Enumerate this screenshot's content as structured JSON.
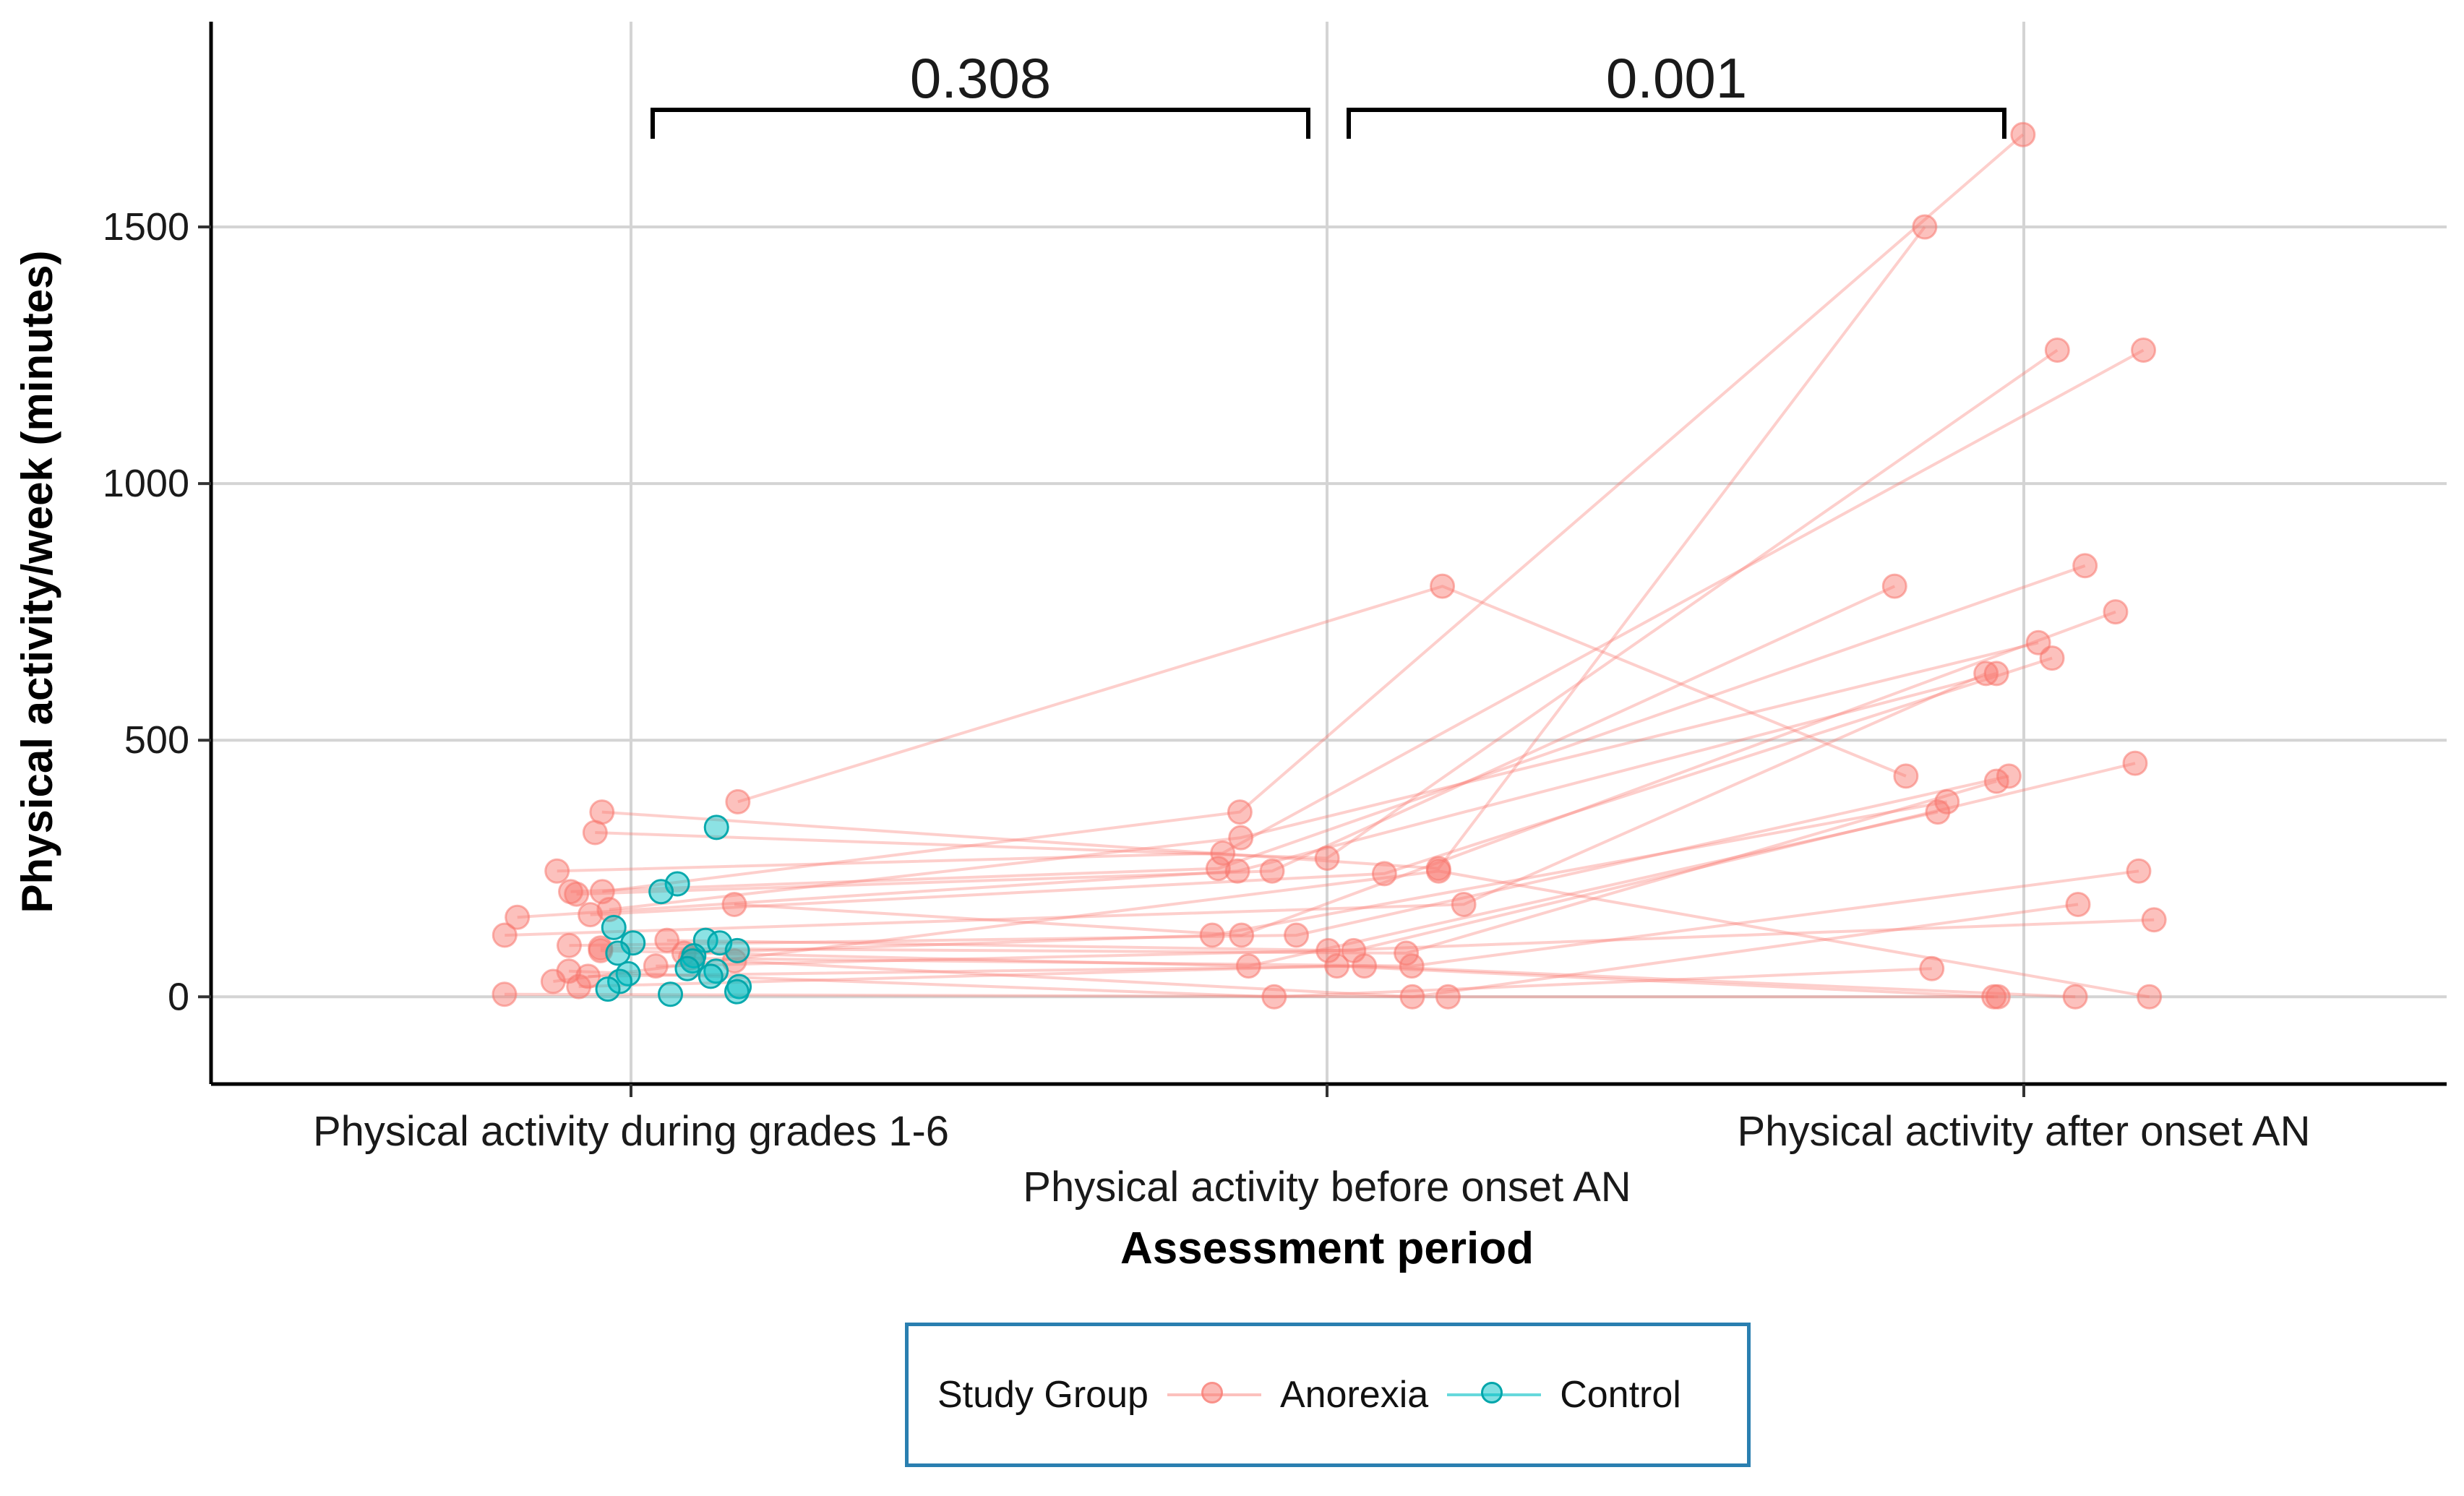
{
  "chart_data": {
    "type": "line",
    "title": "",
    "xlabel": "Assessment period",
    "ylabel": "Physical activity/week (minutes)",
    "ylim": [
      -170,
      1900
    ],
    "yticks": [
      0,
      500,
      1000,
      1500
    ],
    "categories": [
      "Physical activity during grades 1-6",
      "Physical activity before onset AN",
      "Physical activity after onset AN"
    ],
    "legend": {
      "title": "Study Group",
      "position": "bottom"
    },
    "significance": [
      {
        "from": 0,
        "to": 1,
        "label": "0.308"
      },
      {
        "from": 1,
        "to": 2,
        "label": "0.001"
      }
    ],
    "series": [
      {
        "name": "Anorexia",
        "color": "#F8766D",
        "subjects": [
          {
            "values": [
              380,
              800,
              430
            ]
          },
          {
            "values": [
              360,
              250,
              1500
            ]
          },
          {
            "values": [
              320,
              270,
              1260
            ]
          },
          {
            "values": [
              245,
              280,
              1260
            ]
          },
          {
            "values": [
              205,
              360,
              1680
            ]
          },
          {
            "values": [
              205,
              250,
              840
            ]
          },
          {
            "values": [
              200,
              245,
              800
            ]
          },
          {
            "values": [
              180,
              120,
              750
            ]
          },
          {
            "values": [
              170,
              310,
              690
            ]
          },
          {
            "values": [
              160,
              240,
              660
            ]
          },
          {
            "values": [
              155,
              245,
              630
            ]
          },
          {
            "values": [
              120,
              180,
              630
            ]
          },
          {
            "values": [
              110,
              90,
              455
            ]
          },
          {
            "values": [
              100,
              120,
              430
            ]
          },
          {
            "values": [
              95,
              85,
              420
            ]
          },
          {
            "values": [
              90,
              60,
              360
            ]
          },
          {
            "values": [
              85,
              120,
              380
            ]
          },
          {
            "values": [
              75,
              60,
              245
            ]
          },
          {
            "values": [
              70,
              0,
              180
            ]
          },
          {
            "values": [
              60,
              90,
              150
            ]
          },
          {
            "values": [
              50,
              0,
              55
            ]
          },
          {
            "values": [
              40,
              60,
              0
            ]
          },
          {
            "values": [
              30,
              245,
              0
            ]
          },
          {
            "values": [
              20,
              60,
              0
            ]
          },
          {
            "values": [
              5,
              0,
              0
            ]
          }
        ]
      },
      {
        "name": "Control",
        "color": "#00BFC4",
        "subjects": [
          {
            "values": [
              330,
              null,
              null
            ]
          },
          {
            "values": [
              220,
              null,
              null
            ]
          },
          {
            "values": [
              205,
              null,
              null
            ]
          },
          {
            "values": [
              135,
              null,
              null
            ]
          },
          {
            "values": [
              110,
              null,
              null
            ]
          },
          {
            "values": [
              105,
              null,
              null
            ]
          },
          {
            "values": [
              105,
              null,
              null
            ]
          },
          {
            "values": [
              90,
              null,
              null
            ]
          },
          {
            "values": [
              85,
              null,
              null
            ]
          },
          {
            "values": [
              80,
              null,
              null
            ]
          },
          {
            "values": [
              70,
              null,
              null
            ]
          },
          {
            "values": [
              55,
              null,
              null
            ]
          },
          {
            "values": [
              50,
              null,
              null
            ]
          },
          {
            "values": [
              45,
              null,
              null
            ]
          },
          {
            "values": [
              40,
              null,
              null
            ]
          },
          {
            "values": [
              30,
              null,
              null
            ]
          },
          {
            "values": [
              20,
              null,
              null
            ]
          },
          {
            "values": [
              15,
              null,
              null
            ]
          },
          {
            "values": [
              10,
              null,
              null
            ]
          },
          {
            "values": [
              5,
              null,
              null
            ]
          }
        ]
      }
    ]
  }
}
